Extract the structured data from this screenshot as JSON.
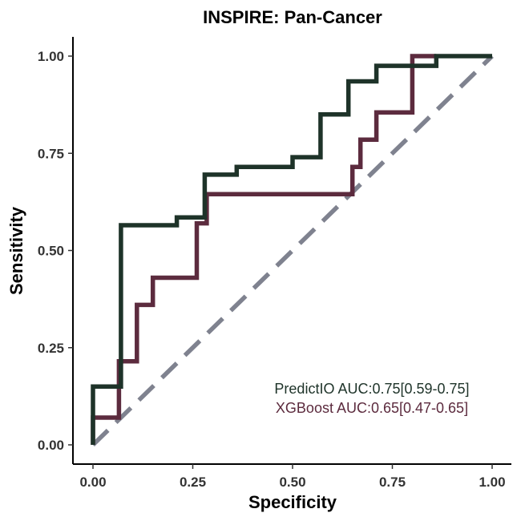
{
  "chart_data": {
    "type": "line",
    "title": "INSPIRE: Pan-Cancer",
    "xlabel": "Specificity",
    "ylabel": "Sensitivity",
    "xlim": [
      0,
      1
    ],
    "ylim": [
      0,
      1
    ],
    "x_ticks": [
      "0.00",
      "0.25",
      "0.50",
      "0.75",
      "1.00"
    ],
    "y_ticks": [
      "0.00",
      "0.25",
      "0.50",
      "0.75",
      "1.00"
    ],
    "grid": false,
    "reference_line": {
      "x": [
        0,
        1
      ],
      "y": [
        0,
        1
      ],
      "color": "#7f828f",
      "style": "dashed"
    },
    "series": [
      {
        "color": "#1e3329",
        "x": [
          0.0,
          0.0,
          0.07,
          0.07,
          0.21,
          0.21,
          0.28,
          0.28,
          0.36,
          0.36,
          0.5,
          0.5,
          0.57,
          0.57,
          0.64,
          0.64,
          0.71,
          0.71,
          0.86,
          0.86,
          1.0
        ],
        "y": [
          0.0,
          0.15,
          0.15,
          0.565,
          0.565,
          0.585,
          0.585,
          0.695,
          0.695,
          0.715,
          0.715,
          0.74,
          0.74,
          0.85,
          0.85,
          0.935,
          0.935,
          0.975,
          0.975,
          1.0,
          1.0
        ]
      },
      {
        "color": "#5c2b3e",
        "x": [
          0.0,
          0.0,
          0.065,
          0.065,
          0.11,
          0.11,
          0.15,
          0.15,
          0.26,
          0.26,
          0.285,
          0.285,
          0.65,
          0.65,
          0.67,
          0.67,
          0.71,
          0.71,
          0.8,
          0.8,
          0.86
        ],
        "y": [
          0.0,
          0.07,
          0.07,
          0.215,
          0.215,
          0.36,
          0.36,
          0.43,
          0.43,
          0.57,
          0.57,
          0.645,
          0.645,
          0.715,
          0.715,
          0.785,
          0.785,
          0.855,
          0.855,
          1.0,
          1.0
        ]
      }
    ],
    "annotations": [
      {
        "text": "PredictIO AUC:0.75[0.59-0.75]",
        "color": "#1e3329"
      },
      {
        "text": "XGBoost AUC:0.65[0.47-0.65]",
        "color": "#5c2b3e"
      }
    ]
  }
}
